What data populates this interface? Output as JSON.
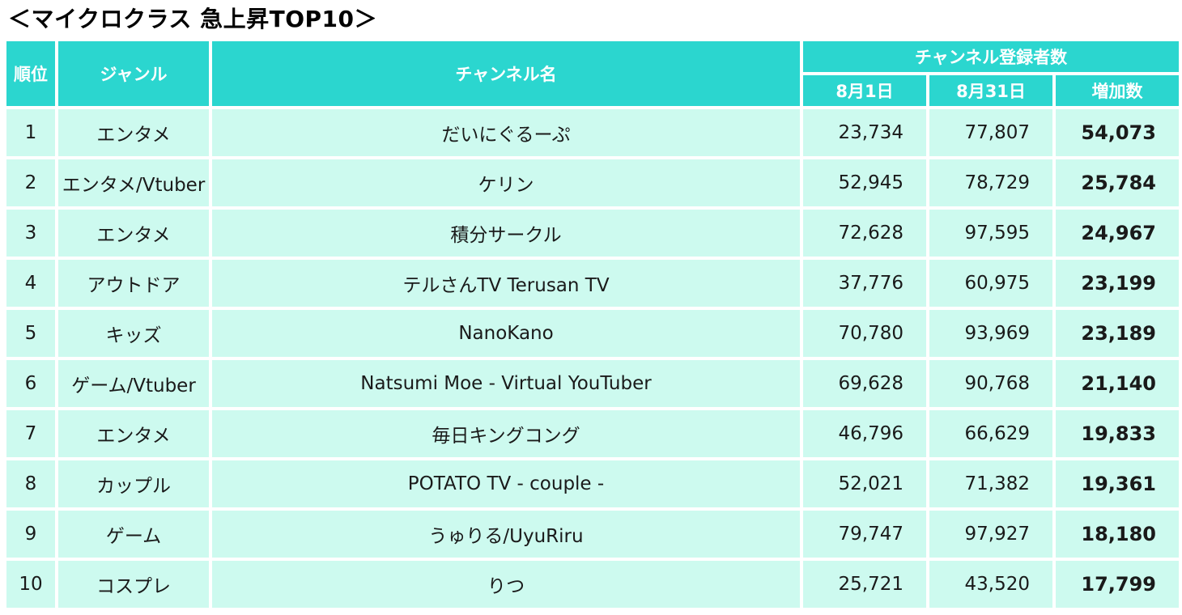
{
  "page": {
    "title": "＜マイクロクラス 急上昇TOP10＞"
  },
  "table": {
    "headers": {
      "rank": "順位",
      "genre": "ジャンル",
      "channel": "チャンネル名",
      "subscribers_group": "チャンネル登録者数",
      "aug1": "8月1日",
      "aug31": "8月31日",
      "increase": "増加数"
    },
    "rows": [
      {
        "rank": "1",
        "genre": "エンタメ",
        "channel": "だいにぐるーぷ",
        "aug1": "23,734",
        "aug31": "77,807",
        "increase": "54,073"
      },
      {
        "rank": "2",
        "genre": "エンタメ/Vtuber",
        "channel": "ケリン",
        "aug1": "52,945",
        "aug31": "78,729",
        "increase": "25,784"
      },
      {
        "rank": "3",
        "genre": "エンタメ",
        "channel": "積分サークル",
        "aug1": "72,628",
        "aug31": "97,595",
        "increase": "24,967"
      },
      {
        "rank": "4",
        "genre": "アウトドア",
        "channel": "テルさんTV Terusan TV",
        "aug1": "37,776",
        "aug31": "60,975",
        "increase": "23,199"
      },
      {
        "rank": "5",
        "genre": "キッズ",
        "channel": "NanoKano",
        "aug1": "70,780",
        "aug31": "93,969",
        "increase": "23,189"
      },
      {
        "rank": "6",
        "genre": "ゲーム/Vtuber",
        "channel": "Natsumi Moe - Virtual YouTuber",
        "aug1": "69,628",
        "aug31": "90,768",
        "increase": "21,140"
      },
      {
        "rank": "7",
        "genre": "エンタメ",
        "channel": "毎日キングコング",
        "aug1": "46,796",
        "aug31": "66,629",
        "increase": "19,833"
      },
      {
        "rank": "8",
        "genre": "カップル",
        "channel": "POTATO TV - couple -",
        "aug1": "52,021",
        "aug31": "71,382",
        "increase": "19,361"
      },
      {
        "rank": "9",
        "genre": "ゲーム",
        "channel": "うゅりる/UyuRiru",
        "aug1": "79,747",
        "aug31": "97,927",
        "increase": "18,180"
      },
      {
        "rank": "10",
        "genre": "コスプレ",
        "channel": "りつ",
        "aug1": "25,721",
        "aug31": "43,520",
        "increase": "17,799"
      }
    ]
  },
  "colors": {
    "header_bg": "#2bd6cf",
    "header_text": "#ffffff",
    "row_bg": "#cdfaef"
  }
}
